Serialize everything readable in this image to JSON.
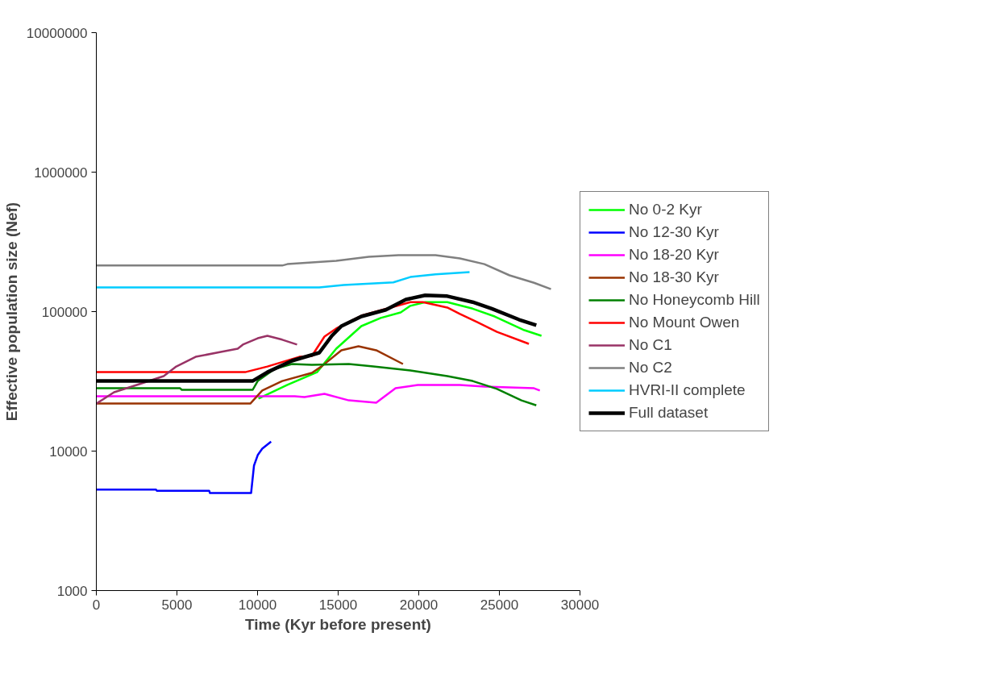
{
  "chart_data": {
    "type": "line",
    "xlabel": "Time (Kyr before present)",
    "ylabel": "Effective population size (Nef)",
    "log": "y",
    "grid": false,
    "legend": "right",
    "marker": "none",
    "line_style": "solid",
    "xlim": [
      0,
      30000
    ],
    "xticks": [
      0,
      5000,
      10000,
      15000,
      20000,
      25000,
      30000
    ],
    "ylim": [
      1000,
      10000000
    ],
    "yticks": [
      1000,
      10000,
      100000,
      1000000,
      10000000
    ],
    "series": [
      {
        "name": "No 0-2 Kyr",
        "color": "#00ff00",
        "x": [
          10060,
          11850,
          13690,
          14880,
          16440,
          17640,
          18880,
          19480,
          20400,
          21770,
          23340,
          24710,
          26550,
          27610
        ],
        "values": [
          23800,
          29800,
          36800,
          54200,
          78700,
          90000,
          98600,
          110000,
          117000,
          117000,
          105000,
          92300,
          73600,
          67100
        ]
      },
      {
        "name": "No 12-30 Kyr",
        "color": "#0000ff",
        "x": [
          0,
          3700,
          3750,
          7000,
          7050,
          9600,
          9780,
          10010,
          10290,
          10840
        ],
        "values": [
          5300,
          5300,
          5200,
          5200,
          5000,
          5000,
          7870,
          9350,
          10400,
          11700
        ]
      },
      {
        "name": "No 18-20 Kyr",
        "color": "#ff00ff",
        "x": [
          0,
          12310,
          12910,
          14150,
          15660,
          17360,
          18560,
          19940,
          22550,
          24070,
          27150,
          27510
        ],
        "values": [
          24700,
          24700,
          24400,
          25700,
          23100,
          22200,
          28200,
          29800,
          29800,
          29000,
          28200,
          27200
        ]
      },
      {
        "name": "No 18-30 Kyr",
        "color": "#993300",
        "x": [
          0,
          9550,
          10290,
          11530,
          13370,
          13960,
          15200,
          16260,
          17360,
          19020
        ],
        "values": [
          21900,
          21900,
          27200,
          31800,
          36400,
          40400,
          52800,
          56400,
          52800,
          42100
        ]
      },
      {
        "name": "No Honeycomb Hill",
        "color": "#008000",
        "x": [
          0,
          5200,
          5300,
          9700,
          10010,
          11070,
          12130,
          13370,
          15660,
          17180,
          19480,
          21770,
          23340,
          24850,
          26370,
          27290
        ],
        "values": [
          28200,
          28200,
          27500,
          27500,
          31800,
          38900,
          42100,
          41500,
          42100,
          40400,
          37900,
          34500,
          31800,
          27900,
          23100,
          21300
        ]
      },
      {
        "name": "No Mount Owen",
        "color": "#ff0000",
        "x": [
          0,
          9230,
          10610,
          12590,
          13370,
          14150,
          14880,
          16440,
          19480,
          20260,
          21770,
          22550,
          23610,
          24850,
          26830
        ],
        "values": [
          36800,
          36800,
          40400,
          47400,
          48100,
          66200,
          75700,
          93500,
          117000,
          117000,
          107000,
          96200,
          84200,
          71600,
          58700
        ]
      },
      {
        "name": "No C1",
        "color": "#993366",
        "x": [
          0,
          1100,
          2660,
          4180,
          4960,
          6160,
          7720,
          8770,
          9090,
          10010,
          10610,
          11530,
          12450
        ],
        "values": [
          21900,
          26400,
          30200,
          34500,
          40400,
          47400,
          51400,
          54200,
          58000,
          64400,
          67100,
          62900,
          58000
        ]
      },
      {
        "name": "No C2",
        "color": "#808080",
        "x": [
          0,
          11530,
          11850,
          14880,
          16900,
          18740,
          21040,
          22550,
          24070,
          25630,
          27150,
          28200
        ],
        "values": [
          214000,
          214000,
          219000,
          231000,
          247000,
          254000,
          254000,
          241000,
          219000,
          182000,
          161000,
          145000
        ]
      },
      {
        "name": "HVRI-II complete",
        "color": "#00ccff",
        "x": [
          0,
          13830,
          15340,
          18420,
          19480,
          21040,
          23150
        ],
        "values": [
          149000,
          149000,
          155000,
          162000,
          177000,
          185000,
          192000
        ]
      },
      {
        "name": "Full dataset",
        "color": "#000000",
        "x": [
          0,
          9690,
          10610,
          12130,
          13830,
          14610,
          15200,
          16440,
          17960,
          19200,
          20400,
          21770,
          23340,
          24530,
          26230,
          27290
        ],
        "values": [
          31800,
          31800,
          36800,
          44400,
          50700,
          67100,
          78700,
          92300,
          103000,
          122000,
          131000,
          129000,
          117000,
          105000,
          87500,
          79800
        ]
      }
    ]
  }
}
